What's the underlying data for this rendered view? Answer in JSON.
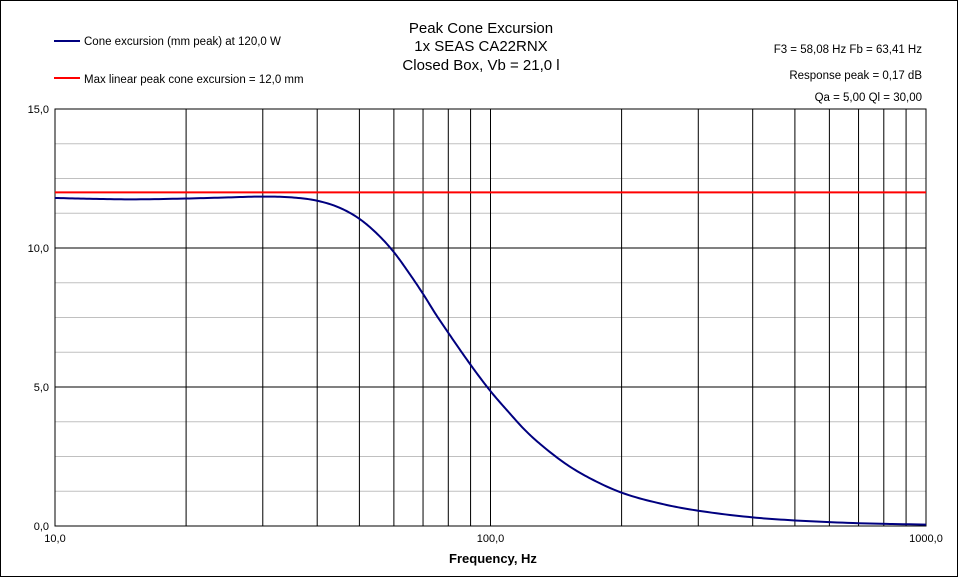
{
  "chart_data": {
    "type": "line",
    "title": [
      "Peak Cone Excursion",
      "1x SEAS CA22RNX",
      "Closed Box, Vb = 21,0 l"
    ],
    "xlabel": "Frequency, Hz",
    "ylabel": "",
    "x_scale": "log",
    "xlim": [
      10,
      1000
    ],
    "ylim": [
      0,
      15
    ],
    "x_tick_labels": [
      "10,0",
      "100,0",
      "1000,0"
    ],
    "y_tick_labels": [
      "0,0",
      "5,0",
      "10,0",
      "15,0"
    ],
    "y_ticks": [
      0,
      5,
      10,
      15
    ],
    "y_minor_step": 1.25,
    "grid": true,
    "legend_position": "top-left",
    "series": [
      {
        "name": "Cone excursion (mm peak) at 120,0 W",
        "color": "#00007f",
        "x": [
          10,
          12,
          15,
          20,
          25,
          30,
          35,
          40,
          45,
          50,
          55,
          60,
          65,
          70,
          75,
          80,
          85,
          90,
          95,
          100,
          110,
          120,
          130,
          150,
          170,
          200,
          250,
          300,
          400,
          500,
          700,
          1000
        ],
        "y": [
          11.8,
          11.77,
          11.75,
          11.78,
          11.82,
          11.85,
          11.82,
          11.7,
          11.45,
          11.05,
          10.5,
          9.85,
          9.1,
          8.35,
          7.6,
          6.95,
          6.35,
          5.8,
          5.3,
          4.85,
          4.1,
          3.45,
          2.95,
          2.2,
          1.7,
          1.2,
          0.78,
          0.55,
          0.31,
          0.2,
          0.1,
          0.05
        ]
      },
      {
        "name": "Max linear peak cone excursion = 12,0 mm",
        "color": "#ff0000",
        "x": [
          10,
          1000
        ],
        "y": [
          12.0,
          12.0
        ]
      }
    ],
    "annotations": [
      "F3 = 58,08  Hz   Fb = 63,41  Hz",
      "Response peak = 0,17  dB",
      "Qa = 5,00   Ql = 30,00"
    ]
  }
}
